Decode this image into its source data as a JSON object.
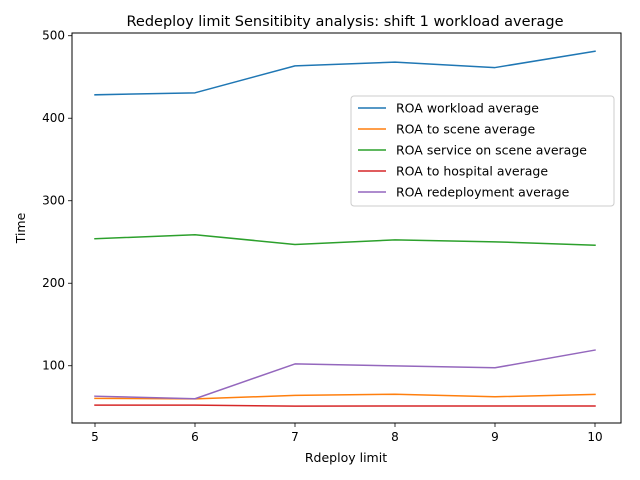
{
  "chart_data": {
    "type": "line",
    "title": "Redeploy limit Sensitibity analysis: shift 1 workload average",
    "xlabel": "Rdeploy limit",
    "ylabel": "Time",
    "x": [
      5,
      6,
      7,
      8,
      9,
      10
    ],
    "xlim": [
      4.77,
      10.26
    ],
    "ylim": [
      30.6,
      503.3
    ],
    "xticks": [
      5,
      6,
      7,
      8,
      9,
      10
    ],
    "yticks": [
      100,
      200,
      300,
      400,
      500
    ],
    "grid": false,
    "legend_position": "center-right",
    "series": [
      {
        "name": "ROA workload average",
        "color": "#1f77b4",
        "values": [
          428.4,
          430.8,
          463.5,
          468.0,
          461.4,
          481.2
        ]
      },
      {
        "name": "ROA to scene average",
        "color": "#ff7f0e",
        "values": [
          60.5,
          59.8,
          64.1,
          65.5,
          62.4,
          65.2
        ]
      },
      {
        "name": "ROA service on scene average",
        "color": "#2ca02c",
        "values": [
          253.9,
          258.8,
          247.0,
          252.5,
          250.2,
          246.0
        ]
      },
      {
        "name": "ROA to hospital average",
        "color": "#d62728",
        "values": [
          52.2,
          52.2,
          51.0,
          51.2,
          51.2,
          51.2
        ]
      },
      {
        "name": "ROA redeployment average",
        "color": "#9467bd",
        "values": [
          63.1,
          60.0,
          102.2,
          99.8,
          97.5,
          119.0
        ]
      }
    ]
  }
}
